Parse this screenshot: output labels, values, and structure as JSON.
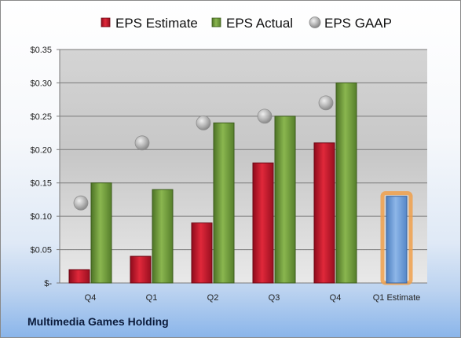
{
  "caption": "Multimedia Games Holding",
  "chart_data": {
    "type": "bar",
    "categories": [
      "Q4",
      "Q1",
      "Q2",
      "Q3",
      "Q4",
      "Q1 Estimate"
    ],
    "series": [
      {
        "name": "EPS Estimate",
        "type": "bar",
        "color": "#c8102e",
        "values": [
          0.02,
          0.04,
          0.09,
          0.18,
          0.21,
          null
        ]
      },
      {
        "name": "EPS Actual",
        "type": "bar",
        "color": "#77a03c",
        "values": [
          0.15,
          0.14,
          0.24,
          0.25,
          0.3,
          null
        ]
      },
      {
        "name": "EPS GAAP",
        "type": "scatter",
        "color": "#a8a8a8",
        "values": [
          0.12,
          0.21,
          0.24,
          0.25,
          0.27,
          null
        ]
      },
      {
        "name": "",
        "type": "bar",
        "color": "#6f9fd8",
        "highlight": "#f0a04b",
        "values": [
          null,
          null,
          null,
          null,
          null,
          0.13
        ]
      }
    ],
    "y_ticks": [
      0,
      0.05,
      0.1,
      0.15,
      0.2,
      0.25,
      0.3,
      0.35
    ],
    "y_tick_labels": [
      "$-",
      "$0.05",
      "$0.10",
      "$0.15",
      "$0.20",
      "$0.25",
      "$0.30",
      "$0.35"
    ],
    "ylim": [
      0,
      0.35
    ],
    "grid": true,
    "legend": "top-center",
    "title": "",
    "xlabel": "",
    "ylabel": ""
  }
}
